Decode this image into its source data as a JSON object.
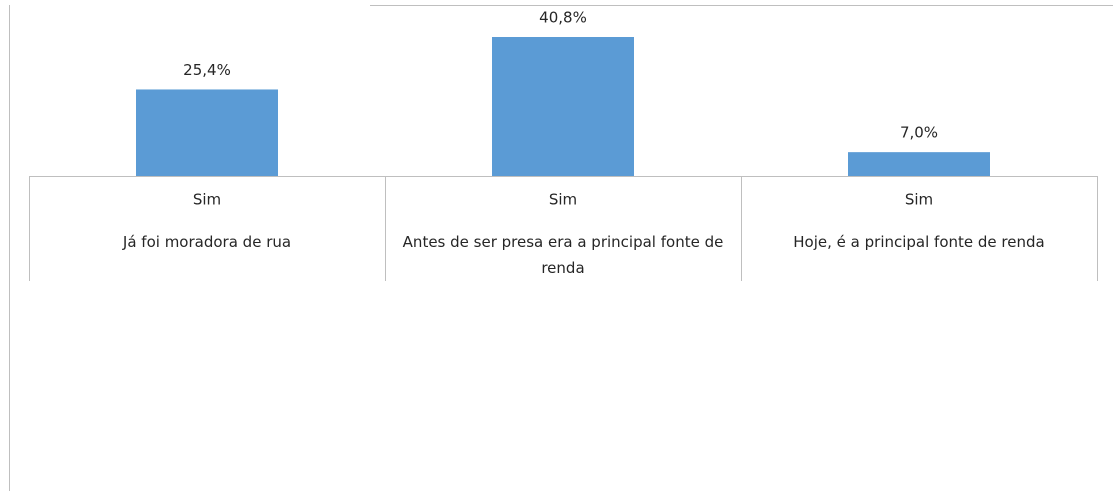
{
  "chart_data": {
    "type": "bar",
    "categories": [
      "Sim",
      "Sim",
      "Sim"
    ],
    "category_groups": [
      "Já foi moradora de rua",
      "Antes de ser presa era a principal fonte de renda",
      "Hoje, é a principal fonte de renda"
    ],
    "values": [
      25.4,
      40.8,
      7.0
    ],
    "value_labels": [
      "25,4%",
      "40,8%",
      "7,0%"
    ],
    "color": "#5b9bd5"
  }
}
